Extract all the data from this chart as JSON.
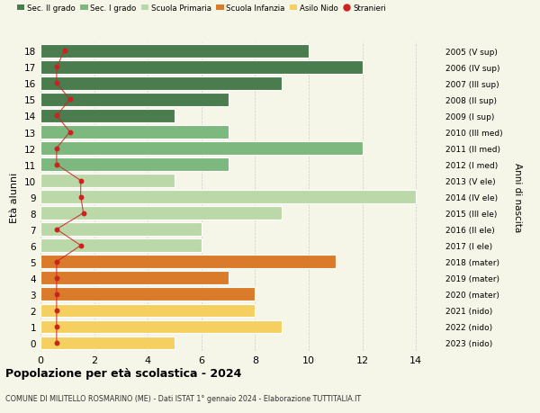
{
  "ages": [
    18,
    17,
    16,
    15,
    14,
    13,
    12,
    11,
    10,
    9,
    8,
    7,
    6,
    5,
    4,
    3,
    2,
    1,
    0
  ],
  "labels_right": [
    "2005 (V sup)",
    "2006 (IV sup)",
    "2007 (III sup)",
    "2008 (II sup)",
    "2009 (I sup)",
    "2010 (III med)",
    "2011 (II med)",
    "2012 (I med)",
    "2013 (V ele)",
    "2014 (IV ele)",
    "2015 (III ele)",
    "2016 (II ele)",
    "2017 (I ele)",
    "2018 (mater)",
    "2019 (mater)",
    "2020 (mater)",
    "2021 (nido)",
    "2022 (nido)",
    "2023 (nido)"
  ],
  "bar_values": [
    10,
    12,
    9,
    7,
    5,
    7,
    12,
    7,
    5,
    14,
    9,
    6,
    6,
    11,
    7,
    8,
    8,
    9,
    5
  ],
  "bar_colors": [
    "#4a7c4e",
    "#4a7c4e",
    "#4a7c4e",
    "#4a7c4e",
    "#4a7c4e",
    "#7db87e",
    "#7db87e",
    "#7db87e",
    "#bbd9a8",
    "#bbd9a8",
    "#bbd9a8",
    "#bbd9a8",
    "#bbd9a8",
    "#d97b2a",
    "#d97b2a",
    "#d97b2a",
    "#f5d060",
    "#f5d060",
    "#f5d060"
  ],
  "stranieri_x": [
    0.9,
    0.6,
    0.6,
    1.1,
    0.6,
    1.1,
    0.6,
    0.6,
    1.5,
    1.5,
    1.6,
    0.6,
    1.5,
    0.6,
    0.6,
    0.6,
    0.6,
    0.6,
    0.6
  ],
  "stranieri_color": "#cc2222",
  "title": "Popolazione per età scolastica - 2024",
  "subtitle": "COMUNE DI MILITELLO ROSMARINO (ME) - Dati ISTAT 1° gennaio 2024 - Elaborazione TUTTITALIA.IT",
  "ylabel": "Età alunni",
  "right_label": "Anni di nascita",
  "xlim": [
    0,
    15
  ],
  "xticks": [
    0,
    2,
    4,
    6,
    8,
    10,
    12,
    14
  ],
  "legend_items": [
    {
      "label": "Sec. II grado",
      "color": "#4a7c4e"
    },
    {
      "label": "Sec. I grado",
      "color": "#7db87e"
    },
    {
      "label": "Scuola Primaria",
      "color": "#bbd9a8"
    },
    {
      "label": "Scuola Infanzia",
      "color": "#d97b2a"
    },
    {
      "label": "Asilo Nido",
      "color": "#f5d060"
    },
    {
      "label": "Stranieri",
      "color": "#cc2222"
    }
  ],
  "bg_color": "#f5f5e8",
  "bar_height": 0.82
}
